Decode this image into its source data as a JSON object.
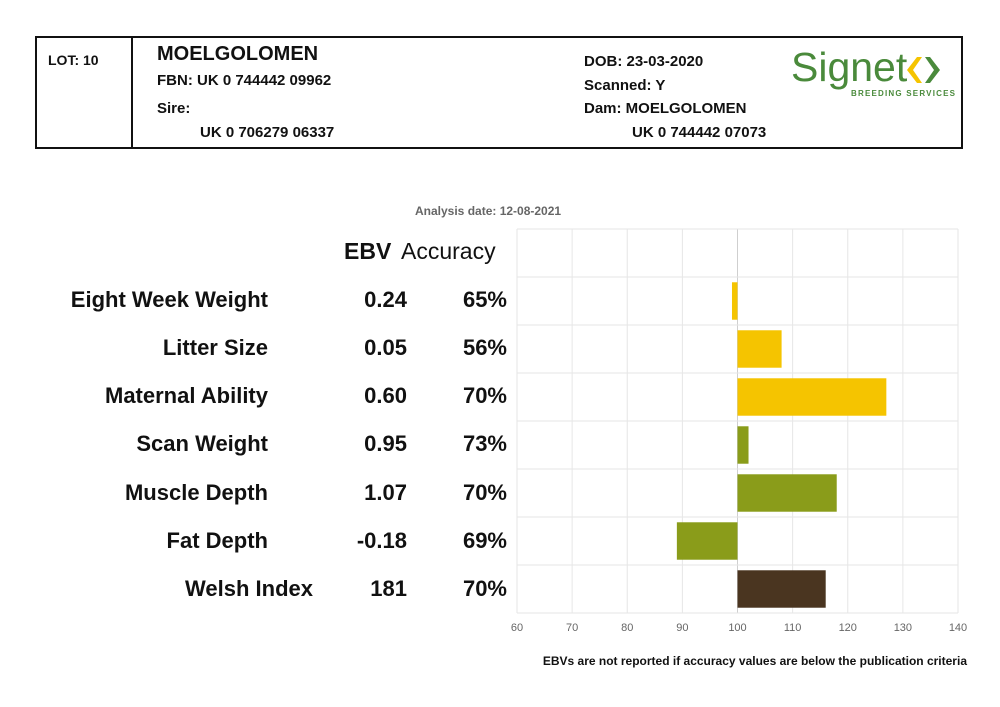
{
  "header": {
    "lot": "LOT: 10",
    "name": "MOELGOLOMEN",
    "fbn": "FBN: UK 0 744442 09962",
    "sire_label": "Sire:",
    "sire_id": "UK 0 706279 06337",
    "dob": "DOB: 23-03-2020",
    "scanned": "Scanned: Y",
    "dam": "Dam: MOELGOLOMEN",
    "dam_id": "UK 0 744442 07073",
    "logo_word": "Signet",
    "logo_sub": "BREEDING SERVICES"
  },
  "analysis_date": "Analysis date: 12-08-2021",
  "columns": {
    "ebv": "EBV",
    "accuracy": "Accuracy"
  },
  "rows": [
    {
      "trait": "Eight Week Weight",
      "ebv": "0.24",
      "accuracy": "65%"
    },
    {
      "trait": "Litter Size",
      "ebv": "0.05",
      "accuracy": "56%"
    },
    {
      "trait": "Maternal Ability",
      "ebv": "0.60",
      "accuracy": "70%"
    },
    {
      "trait": "Scan Weight",
      "ebv": "0.95",
      "accuracy": "73%"
    },
    {
      "trait": "Muscle Depth",
      "ebv": "1.07",
      "accuracy": "70%"
    },
    {
      "trait": "Fat Depth",
      "ebv": "-0.18",
      "accuracy": "69%"
    },
    {
      "trait": "Welsh Index",
      "ebv": "181",
      "accuracy": "70%"
    }
  ],
  "footer_note": "EBVs are not reported if accuracy values are below the publication criteria",
  "colors": {
    "yellow": "#f5c400",
    "green": "#8a9c1a",
    "brown": "#4a3520",
    "logo_green": "#4a8a3b",
    "grid": "#e6e6e6"
  },
  "chart_data": {
    "type": "bar",
    "orientation": "horizontal",
    "baseline": 100,
    "xlim": [
      60,
      140
    ],
    "xticks": [
      "60",
      "70",
      "80",
      "90",
      "100",
      "110",
      "120",
      "130",
      "140"
    ],
    "categories": [
      "Eight Week Weight",
      "Litter Size",
      "Maternal Ability",
      "Scan Weight",
      "Muscle Depth",
      "Fat Depth",
      "Welsh Index"
    ],
    "values": [
      99,
      108,
      127,
      102,
      118,
      89,
      116
    ],
    "bar_colors": [
      "yellow",
      "yellow",
      "yellow",
      "green",
      "green",
      "green",
      "brown"
    ],
    "grid": true
  }
}
